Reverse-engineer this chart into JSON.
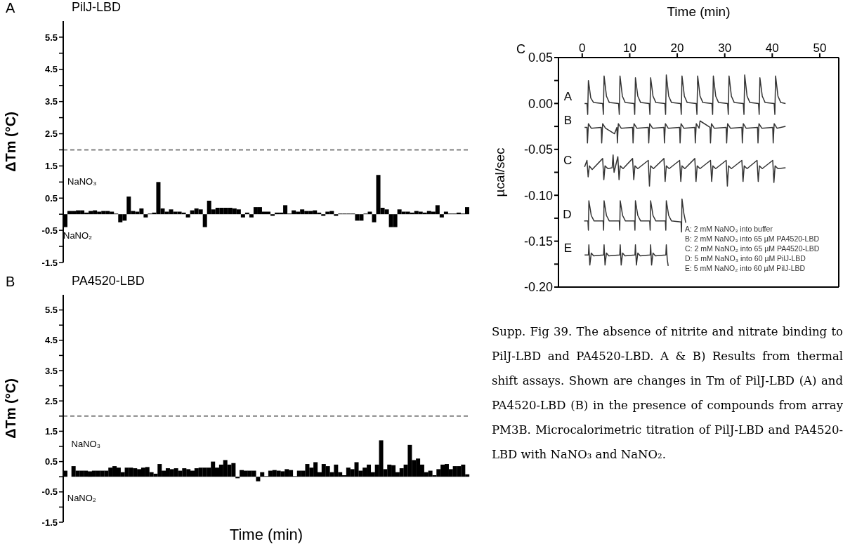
{
  "chart_data": [
    {
      "type": "bar",
      "title": "PilJ-LBD",
      "ylabel": "ΔTm (°C)",
      "annotations": [
        "A",
        "NaNO₃",
        "NaNO₂"
      ],
      "categories": [
        null,
        null,
        null,
        null,
        null,
        null,
        null,
        null,
        null,
        null,
        null,
        null,
        null,
        null,
        null,
        null,
        null,
        null,
        null,
        null,
        null,
        null,
        null,
        null,
        null,
        null,
        null,
        null,
        null,
        null,
        null,
        null,
        null,
        null,
        null,
        null,
        null,
        null,
        null,
        null,
        null,
        null,
        null,
        null,
        null,
        null,
        null,
        null,
        null,
        null,
        null,
        null,
        null,
        null,
        null,
        null,
        null,
        null,
        null,
        null,
        null,
        null,
        null,
        null,
        null,
        null,
        null,
        null,
        null,
        null,
        null,
        null,
        null,
        null,
        null,
        null,
        null,
        null,
        null,
        null,
        null,
        null,
        null,
        null,
        null,
        null,
        null,
        null,
        null,
        null,
        null,
        null,
        null,
        null,
        null,
        null
      ],
      "values": [
        -0.4,
        0.1,
        0.1,
        0.12,
        0.12,
        0.05,
        0.1,
        0.12,
        0.08,
        0.1,
        0.1,
        0.08,
        0.02,
        -0.25,
        -0.2,
        0.55,
        0.1,
        0.08,
        0.18,
        -0.1,
        0.02,
        0.05,
        1.0,
        0.18,
        0.08,
        0.15,
        0.08,
        0.08,
        0.05,
        -0.1,
        0.12,
        0.18,
        0.15,
        -0.4,
        0.42,
        0.15,
        0.2,
        0.2,
        0.2,
        0.2,
        0.18,
        0.15,
        -0.1,
        0.05,
        -0.1,
        0.22,
        0.22,
        0.08,
        0.08,
        -0.05,
        0.05,
        0.05,
        0.28,
        0.02,
        0.12,
        0.08,
        0.15,
        0.1,
        0.1,
        0.12,
        0.05,
        -0.05,
        0.08,
        0.1,
        -0.05,
        0.02,
        0.02,
        0.02,
        0.02,
        -0.2,
        -0.2,
        0.02,
        0.08,
        -0.25,
        1.22,
        0.2,
        0.15,
        -0.4,
        -0.4,
        0.15,
        0.08,
        0.08,
        0.05,
        0.1,
        0.08,
        0.05,
        0.1,
        0.08,
        0.28,
        -0.1,
        0.08,
        0.02,
        0.02,
        0.05,
        0.02,
        0.22
      ],
      "color": "#000000",
      "ylim": [
        -1.5,
        6
      ],
      "yticks": [
        {
          "value": -1.5,
          "label": "-1.5"
        },
        {
          "value": -1,
          "label": null
        },
        {
          "value": -0.5,
          "label": "-0.5"
        },
        {
          "value": 0,
          "label": null
        },
        {
          "value": 0.5,
          "label": "0.5"
        },
        {
          "value": 1,
          "label": null
        },
        {
          "value": 1.5,
          "label": "1.5"
        },
        {
          "value": 2,
          "label": null
        },
        {
          "value": 2.5,
          "label": "2.5"
        },
        {
          "value": 3,
          "label": null
        },
        {
          "value": 3.5,
          "label": "3.5"
        },
        {
          "value": 4,
          "label": null
        },
        {
          "value": 4.5,
          "label": "4.5"
        },
        {
          "value": 5,
          "label": null
        },
        {
          "value": 5.5,
          "label": "5.5"
        }
      ],
      "ref_lines": [
        {
          "axis": "y",
          "value": 2,
          "color": "#808080",
          "line_style": "dashed"
        }
      ],
      "tick_labels": "y"
    },
    {
      "type": "bar",
      "title": "PA4520-LBD",
      "xlabel": "Time (min)",
      "ylabel": "ΔTm (°C)",
      "annotations": [
        "B",
        "NaNO₃",
        "NaNO₂"
      ],
      "categories": [
        null,
        null,
        null,
        null,
        null,
        null,
        null,
        null,
        null,
        null,
        null,
        null,
        null,
        null,
        null,
        null,
        null,
        null,
        null,
        null,
        null,
        null,
        null,
        null,
        null,
        null,
        null,
        null,
        null,
        null,
        null,
        null,
        null,
        null,
        null,
        null,
        null,
        null,
        null,
        null,
        null,
        null,
        null,
        null,
        null,
        null,
        null,
        null,
        null,
        null,
        null,
        null,
        null,
        null,
        null,
        null,
        null,
        null,
        null,
        null,
        null,
        null,
        null,
        null,
        null,
        null,
        null,
        null,
        null,
        null,
        null,
        null,
        null,
        null,
        null,
        null,
        null,
        null,
        null,
        null,
        null,
        null,
        null,
        null,
        null,
        null,
        null,
        null,
        null,
        null,
        null,
        null,
        null,
        null,
        null,
        null,
        null,
        null,
        null
      ],
      "values": [
        0.2,
        0,
        0.35,
        0.2,
        0.2,
        0.2,
        0.18,
        0.2,
        0.2,
        0.2,
        0.2,
        0.3,
        0.35,
        0.3,
        0.15,
        0.3,
        0.3,
        0.28,
        0.25,
        0.3,
        0.32,
        0.15,
        0.1,
        0.42,
        0.2,
        0.28,
        0.25,
        0.28,
        0.2,
        0.28,
        0.25,
        0.2,
        0.28,
        0.3,
        0.3,
        0.3,
        0.5,
        0.3,
        0.4,
        0.55,
        0.4,
        0.45,
        -0.05,
        0.22,
        0.2,
        0.2,
        0.2,
        -0.15,
        0.15,
        0.02,
        0.2,
        0.22,
        0.2,
        0.18,
        0.25,
        0.22,
        0.02,
        0.2,
        0.2,
        0.42,
        0.3,
        0.48,
        0.15,
        0.42,
        0.35,
        0.15,
        0.4,
        0.15,
        0.05,
        0.3,
        0.25,
        0.48,
        0.2,
        0.3,
        0.4,
        0.15,
        0.4,
        1.2,
        0.25,
        0.4,
        0.38,
        0.15,
        0.28,
        0.4,
        1.05,
        0.55,
        0.6,
        0.4,
        0.15,
        0.2,
        0.05,
        0.25,
        0.4,
        0.42,
        0.25,
        0.35,
        0.35,
        0.4,
        0.08
      ],
      "color": "#000000",
      "ylim": [
        -1.5,
        6
      ],
      "yticks": [
        {
          "value": -1.5,
          "label": "-1.5"
        },
        {
          "value": -1,
          "label": null
        },
        {
          "value": -0.5,
          "label": "-0.5"
        },
        {
          "value": 0,
          "label": null
        },
        {
          "value": 0.5,
          "label": "0.5"
        },
        {
          "value": 1,
          "label": null
        },
        {
          "value": 1.5,
          "label": "1.5"
        },
        {
          "value": 2,
          "label": null
        },
        {
          "value": 2.5,
          "label": "2.5"
        },
        {
          "value": 3,
          "label": null
        },
        {
          "value": 3.5,
          "label": "3.5"
        },
        {
          "value": 4,
          "label": null
        },
        {
          "value": 4.5,
          "label": "4.5"
        },
        {
          "value": 5,
          "label": null
        },
        {
          "value": 5.5,
          "label": "5.5"
        }
      ],
      "ref_lines": [
        {
          "axis": "y",
          "value": 2,
          "color": "#808080",
          "line_style": "dashed"
        }
      ],
      "tick_labels": "y"
    },
    {
      "type": "line",
      "xlabel": "Time (min)",
      "ylabel": "µcal/sec",
      "annotations": [
        "C",
        "A: 2 mM NaNO₃ into buffer",
        "B: 2 mM NaNO₃ into 65 µM PA4520-LBD",
        "C: 2 mM NaNO₂ into 65 µM PA4520-LBD",
        "D: 5 mM NaNO₃ into 60 µM PilJ-LBD",
        "E: 5 mM NaNO₂ into 60 µM PilJ-LBD",
        "Supp. Fig 39. The absence of nitrite and nitrate binding to PilJ-LBD and PA4520-LBD. A & B) Results from thermal shift assays. Shown are changes in Tm of PilJ-LBD (A) and PA4520-LBD (B) in the presence of compounds from array PM3B. Microcalorimetric titration of PilJ-LBD and PA4520-LBD with NaNO₃ and NaNO₂."
      ],
      "xlim": [
        -5,
        54
      ],
      "xticks": [
        0,
        10,
        20,
        30,
        40,
        50
      ],
      "ylim": [
        -0.2,
        0.05
      ],
      "yticks": [
        {
          "value": -0.2,
          "label": "-0.20"
        },
        {
          "value": -0.175,
          "label": null
        },
        {
          "value": -0.15,
          "label": "-0.15"
        },
        {
          "value": -0.125,
          "label": null
        },
        {
          "value": -0.1,
          "label": "-0.10"
        },
        {
          "value": -0.075,
          "label": null
        },
        {
          "value": -0.05,
          "label": "-0.05"
        },
        {
          "value": -0.025,
          "label": null
        },
        {
          "value": 0,
          "label": "0.00"
        },
        {
          "value": 0.025,
          "label": null
        },
        {
          "value": 0.05,
          "label": "0.05"
        }
      ],
      "marker": "none",
      "line_style": "solid",
      "series": [
        {
          "name": "A",
          "color": "#333333",
          "x": [
            0.5,
            1.0,
            1.15,
            1.3,
            1.8,
            2.4,
            4.3,
            4.45,
            4.6,
            5.1,
            5.7,
            7.65,
            7.8,
            7.95,
            8.45,
            9.05,
            10.9,
            11.05,
            11.2,
            11.7,
            12.3,
            14.1,
            14.25,
            14.4,
            14.9,
            15.5,
            17.4,
            17.55,
            17.7,
            18.2,
            18.8,
            20.7,
            20.85,
            21.0,
            21.5,
            22.1,
            24.0,
            24.15,
            24.3,
            24.8,
            25.4,
            27.3,
            27.45,
            27.6,
            28.1,
            28.7,
            30.6,
            30.75,
            30.9,
            31.4,
            32.0,
            33.9,
            34.05,
            34.2,
            34.7,
            35.3,
            37.1,
            37.25,
            37.4,
            37.9,
            38.5,
            40.4,
            40.55,
            40.7,
            41.2,
            41.8,
            42.8
          ],
          "values": [
            0,
            0,
            -0.012,
            0.025,
            0.006,
            0.001,
            0,
            -0.012,
            0.03,
            0.008,
            0.001,
            0,
            -0.012,
            0.03,
            0.008,
            0.001,
            0,
            -0.012,
            0.028,
            0.008,
            0.001,
            0,
            -0.012,
            0.028,
            0.008,
            0.001,
            0,
            -0.012,
            0.031,
            0.008,
            0.001,
            0,
            -0.012,
            0.03,
            0.008,
            0.001,
            0,
            -0.012,
            0.03,
            0.008,
            0.001,
            0,
            -0.012,
            0.03,
            0.008,
            0.001,
            0,
            -0.012,
            0.03,
            0.008,
            0.001,
            0,
            -0.012,
            0.031,
            0.008,
            0.001,
            0,
            -0.012,
            0.028,
            0.008,
            0.001,
            0,
            -0.012,
            0.03,
            0.008,
            0.001,
            0
          ]
        },
        {
          "name": "B",
          "color": "#333333",
          "x": [
            0.5,
            1.0,
            1.1,
            1.3,
            1.9,
            4.0,
            4.1,
            4.3,
            4.9,
            6.8,
            7.3,
            7.4,
            7.6,
            8.2,
            10.6,
            10.7,
            10.9,
            11.5,
            13.9,
            14.0,
            14.2,
            14.8,
            17.2,
            17.3,
            17.5,
            18.1,
            20.5,
            20.6,
            20.8,
            21.4,
            23.7,
            23.8,
            24.0,
            24.6,
            24.8,
            26.9,
            27.0,
            27.2,
            27.8,
            30.3,
            30.4,
            30.6,
            31.2,
            33.6,
            33.7,
            33.9,
            34.5,
            36.9,
            37.0,
            37.2,
            37.8,
            40.1,
            40.2,
            40.4,
            41.0,
            42.8
          ],
          "values": [
            -0.026,
            -0.026,
            -0.043,
            -0.022,
            -0.027,
            -0.026,
            -0.043,
            -0.022,
            -0.027,
            -0.033,
            -0.026,
            -0.043,
            -0.022,
            -0.027,
            -0.026,
            -0.043,
            -0.022,
            -0.027,
            -0.026,
            -0.043,
            -0.022,
            -0.027,
            -0.026,
            -0.043,
            -0.022,
            -0.027,
            -0.026,
            -0.043,
            -0.022,
            -0.027,
            -0.026,
            -0.043,
            -0.022,
            -0.027,
            -0.019,
            -0.026,
            -0.043,
            -0.022,
            -0.027,
            -0.026,
            -0.043,
            -0.022,
            -0.027,
            -0.026,
            -0.043,
            -0.022,
            -0.027,
            -0.026,
            -0.043,
            -0.022,
            -0.027,
            -0.026,
            -0.043,
            -0.022,
            -0.027,
            -0.025
          ]
        },
        {
          "name": "C",
          "color": "#333333",
          "x": [
            0.5,
            1.0,
            1.25,
            1.5,
            2.1,
            4.3,
            4.55,
            4.8,
            5.4,
            6.3,
            6.5,
            6.7,
            7.5,
            7.75,
            8.0,
            8.6,
            10.6,
            10.85,
            11.1,
            11.7,
            13.9,
            14.15,
            14.4,
            15.0,
            17.2,
            17.45,
            17.7,
            18.3,
            20.5,
            20.75,
            21.0,
            21.6,
            23.7,
            23.95,
            24.2,
            24.8,
            27.0,
            27.25,
            27.5,
            28.1,
            30.3,
            30.55,
            30.8,
            31.4,
            33.6,
            33.85,
            34.1,
            34.7,
            36.8,
            37.05,
            37.3,
            37.9,
            40.1,
            40.35,
            40.6,
            41.2,
            42.8
          ],
          "values": [
            -0.069,
            -0.062,
            -0.08,
            -0.068,
            -0.072,
            -0.06,
            -0.083,
            -0.068,
            -0.071,
            -0.07,
            -0.056,
            -0.075,
            -0.058,
            -0.083,
            -0.068,
            -0.071,
            -0.06,
            -0.083,
            -0.068,
            -0.071,
            -0.062,
            -0.09,
            -0.068,
            -0.071,
            -0.06,
            -0.085,
            -0.068,
            -0.071,
            -0.062,
            -0.085,
            -0.068,
            -0.071,
            -0.06,
            -0.085,
            -0.068,
            -0.071,
            -0.062,
            -0.085,
            -0.068,
            -0.071,
            -0.062,
            -0.09,
            -0.068,
            -0.071,
            -0.062,
            -0.085,
            -0.068,
            -0.071,
            -0.062,
            -0.085,
            -0.068,
            -0.071,
            -0.062,
            -0.086,
            -0.068,
            -0.071,
            -0.07
          ]
        },
        {
          "name": "D",
          "color": "#333333",
          "x": [
            0.4,
            1.2,
            1.3,
            1.4,
            1.9,
            2.5,
            4.4,
            4.5,
            4.6,
            5.1,
            5.7,
            7.8,
            7.9,
            8.0,
            8.5,
            9.1,
            11.0,
            11.1,
            11.2,
            11.7,
            12.3,
            14.2,
            14.3,
            14.4,
            14.9,
            15.5,
            17.5,
            17.6,
            17.7,
            18.2,
            18.8,
            20.8,
            20.9,
            21.0,
            21.4,
            21.8
          ],
          "values": [
            -0.128,
            -0.128,
            -0.138,
            -0.106,
            -0.122,
            -0.128,
            -0.128,
            -0.138,
            -0.106,
            -0.122,
            -0.128,
            -0.128,
            -0.138,
            -0.106,
            -0.122,
            -0.128,
            -0.128,
            -0.138,
            -0.106,
            -0.122,
            -0.128,
            -0.128,
            -0.138,
            -0.106,
            -0.122,
            -0.128,
            -0.128,
            -0.138,
            -0.106,
            -0.122,
            -0.128,
            -0.129,
            -0.14,
            -0.104,
            -0.12,
            -0.13
          ]
        },
        {
          "name": "E",
          "color": "#333333",
          "x": [
            0.5,
            1.3,
            1.4,
            1.6,
            1.9,
            2.4,
            4.5,
            4.6,
            4.8,
            5.1,
            5.6,
            7.9,
            8.0,
            8.2,
            8.5,
            9.0,
            11.1,
            11.2,
            11.4,
            11.7,
            12.2,
            14.3,
            14.4,
            14.6,
            14.9,
            15.4,
            17.6,
            17.7,
            17.9,
            18.1
          ],
          "values": [
            -0.165,
            -0.165,
            -0.154,
            -0.176,
            -0.163,
            -0.166,
            -0.165,
            -0.154,
            -0.176,
            -0.163,
            -0.166,
            -0.165,
            -0.154,
            -0.176,
            -0.163,
            -0.166,
            -0.165,
            -0.154,
            -0.176,
            -0.163,
            -0.166,
            -0.165,
            -0.154,
            -0.176,
            -0.163,
            -0.166,
            -0.165,
            -0.154,
            -0.17,
            -0.177
          ]
        }
      ]
    }
  ]
}
